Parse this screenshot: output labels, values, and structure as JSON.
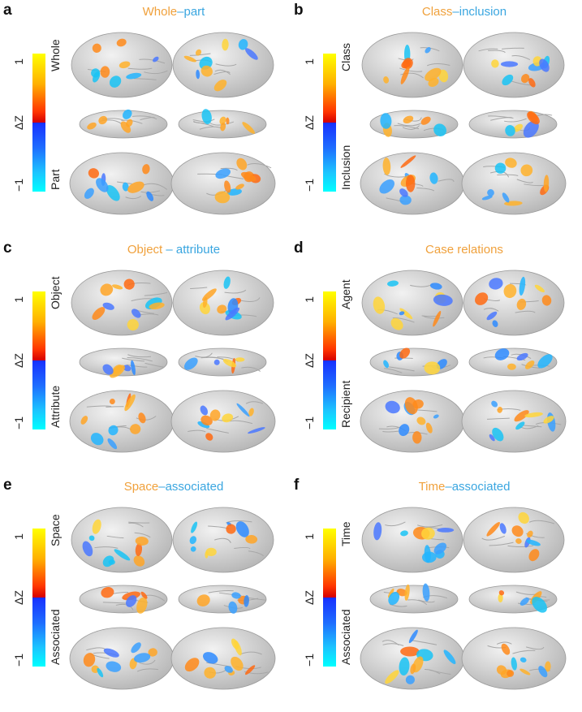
{
  "colorbar": {
    "top_tick": "1",
    "bottom_tick": "−1",
    "axis_label": "ΔZ",
    "top_color": "#ffff00",
    "mid_warm": "#d40000",
    "mid_cool": "#1830ff",
    "bottom_color": "#00ffff"
  },
  "colors": {
    "warm_title": "#f0a13c",
    "cool_title": "#3aa6e0"
  },
  "panels": [
    {
      "letter": "a",
      "title_warm": "Whole",
      "title_sep": "–",
      "title_cool": "part",
      "label_top": "Whole",
      "label_bottom": "Part"
    },
    {
      "letter": "b",
      "title_warm": "Class",
      "title_sep": "–",
      "title_cool": "inclusion",
      "label_top": "Class",
      "label_bottom": "Inclusion"
    },
    {
      "letter": "c",
      "title_warm": "Object",
      "title_sep": " – ",
      "title_cool": "attribute",
      "label_top": "Object",
      "label_bottom": "Attribute"
    },
    {
      "letter": "d",
      "title_warm": "Case relations",
      "title_sep": "",
      "title_cool": "",
      "label_top": "Agent",
      "label_bottom": "Recipient"
    },
    {
      "letter": "e",
      "title_warm": "Space",
      "title_sep": "–",
      "title_cool": "associated",
      "label_top": "Space",
      "label_bottom": "Associated"
    },
    {
      "letter": "f",
      "title_warm": "Time",
      "title_sep": "–",
      "title_cool": "associated",
      "label_top": "Time",
      "label_bottom": "Associated"
    }
  ]
}
